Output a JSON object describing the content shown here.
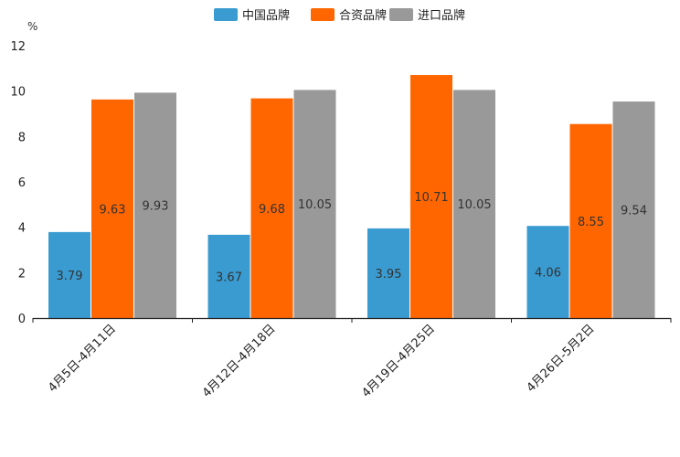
{
  "chart_data": {
    "type": "bar",
    "unit_label": "%",
    "categories": [
      "4月5日-4月11日",
      "4月12日-4月18日",
      "4月19日-4月25日",
      "4月26日-5月2日"
    ],
    "series": [
      {
        "name": "中国品牌",
        "color": "#3a9bd1",
        "values": [
          3.79,
          3.67,
          3.95,
          4.06
        ]
      },
      {
        "name": "合资品牌",
        "color": "#ff6600",
        "values": [
          9.63,
          9.68,
          10.71,
          8.55
        ]
      },
      {
        "name": "进口品牌",
        "color": "#999999",
        "values": [
          9.93,
          10.05,
          10.05,
          9.54
        ]
      }
    ],
    "ylim": [
      0,
      12
    ],
    "yticks": [
      0,
      2,
      4,
      6,
      8,
      10,
      12
    ],
    "legend_position": "top-center",
    "grid": false
  }
}
